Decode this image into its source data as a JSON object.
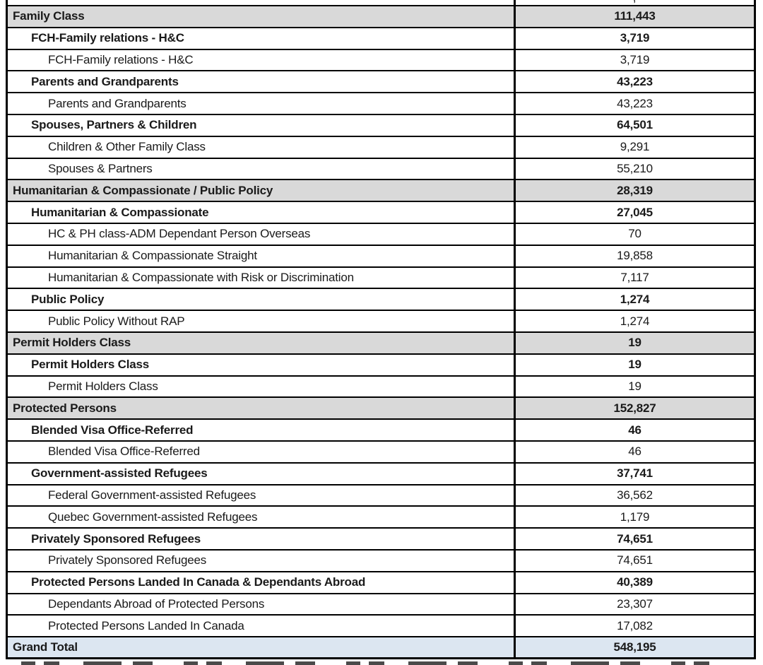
{
  "document": {
    "type": "statistics-table",
    "description_note": "Table of permanent resident admissions by immigration category, cropped at top and bottom"
  },
  "colors": {
    "group_row_bg": "#d9d9d9",
    "total_row_bg": "#dce6f1",
    "border": "#000000",
    "text": "#1a1a1a"
  },
  "table": {
    "partial_top_row": {
      "value_fragment": ","
    },
    "rows": [
      {
        "label": "Family Class",
        "value": "111,443",
        "level": "group"
      },
      {
        "label": "FCH-Family relations - H&C",
        "value": "3,719",
        "level": "sub"
      },
      {
        "label": "FCH-Family relations - H&C",
        "value": "3,719",
        "level": "detail"
      },
      {
        "label": "Parents and Grandparents",
        "value": "43,223",
        "level": "sub"
      },
      {
        "label": "Parents and Grandparents",
        "value": "43,223",
        "level": "detail"
      },
      {
        "label": "Spouses, Partners & Children",
        "value": "64,501",
        "level": "sub"
      },
      {
        "label": "Children & Other Family Class",
        "value": "9,291",
        "level": "detail"
      },
      {
        "label": "Spouses & Partners",
        "value": "55,210",
        "level": "detail"
      },
      {
        "label": "Humanitarian & Compassionate / Public Policy",
        "value": "28,319",
        "level": "group"
      },
      {
        "label": "Humanitarian & Compassionate",
        "value": "27,045",
        "level": "sub"
      },
      {
        "label": "HC & PH class-ADM Dependant Person Overseas",
        "value": "70",
        "level": "detail"
      },
      {
        "label": "Humanitarian & Compassionate Straight",
        "value": "19,858",
        "level": "detail"
      },
      {
        "label": "Humanitarian & Compassionate with Risk or Discrimination",
        "value": "7,117",
        "level": "detail"
      },
      {
        "label": "Public Policy",
        "value": "1,274",
        "level": "sub"
      },
      {
        "label": "Public Policy Without RAP",
        "value": "1,274",
        "level": "detail"
      },
      {
        "label": "Permit Holders Class",
        "value": "19",
        "level": "group"
      },
      {
        "label": "Permit Holders Class",
        "value": "19",
        "level": "sub"
      },
      {
        "label": "Permit Holders Class",
        "value": "19",
        "level": "detail"
      },
      {
        "label": "Protected Persons",
        "value": "152,827",
        "level": "group"
      },
      {
        "label": "Blended Visa Office-Referred",
        "value": "46",
        "level": "sub"
      },
      {
        "label": "Blended Visa Office-Referred",
        "value": "46",
        "level": "detail"
      },
      {
        "label": "Government-assisted Refugees",
        "value": "37,741",
        "level": "sub"
      },
      {
        "label": "Federal Government-assisted Refugees",
        "value": "36,562",
        "level": "detail"
      },
      {
        "label": "Quebec Government-assisted Refugees",
        "value": "1,179",
        "level": "detail"
      },
      {
        "label": "Privately Sponsored Refugees",
        "value": "74,651",
        "level": "sub"
      },
      {
        "label": "Privately Sponsored Refugees",
        "value": "74,651",
        "level": "detail"
      },
      {
        "label": "Protected Persons Landed In Canada & Dependants Abroad",
        "value": "40,389",
        "level": "sub"
      },
      {
        "label": "Dependants Abroad of Protected Persons",
        "value": "23,307",
        "level": "detail"
      },
      {
        "label": "Protected Persons Landed In Canada",
        "value": "17,082",
        "level": "detail"
      },
      {
        "label": "Grand Total",
        "value": "548,195",
        "level": "total"
      }
    ]
  }
}
